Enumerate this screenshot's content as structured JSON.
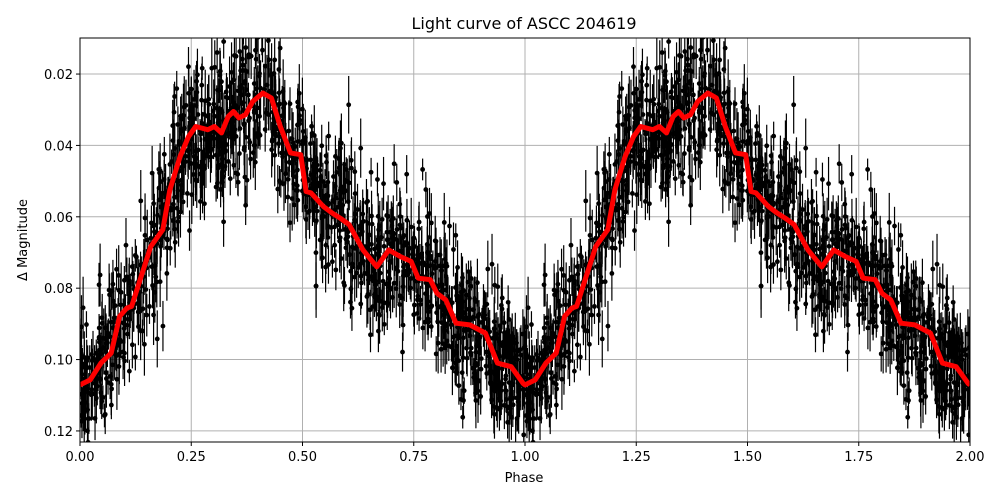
{
  "chart_data": {
    "type": "scatter",
    "title": "Light curve of ASCC 204619",
    "xlabel": "Phase",
    "ylabel": "Δ Magnitude",
    "xlim": [
      0,
      2
    ],
    "ylim": [
      0.1231,
      0.0099
    ],
    "y_inverted": true,
    "grid": true,
    "x_ticks": [
      "0.00",
      "0.25",
      "0.50",
      "0.75",
      "1.00",
      "1.25",
      "1.50",
      "1.75",
      "2.00"
    ],
    "x_tick_values": [
      0,
      0.25,
      0.5,
      0.75,
      1.0,
      1.25,
      1.5,
      1.75,
      2.0
    ],
    "y_ticks": [
      "0.02",
      "0.04",
      "0.06",
      "0.08",
      "0.10",
      "0.12"
    ],
    "y_tick_values": [
      0.02,
      0.04,
      0.06,
      0.08,
      0.1,
      0.12
    ],
    "colors": {
      "observations": "#000000",
      "smoothed": "#ff0000",
      "grid": "#b0b0b0"
    },
    "series": [
      {
        "kind": "errorbar-scatter",
        "color": "#000000",
        "note_period": "points repeat for phase 1–2",
        "scatter_sd": 0.01
      },
      {
        "kind": "line",
        "color": "#ff0000",
        "phase": [
          0,
          0.023,
          0.047,
          0.07,
          0.089,
          0.105,
          0.116,
          0.147,
          0.159,
          0.186,
          0.202,
          0.225,
          0.244,
          0.26,
          0.287,
          0.302,
          0.318,
          0.333,
          0.345,
          0.357,
          0.372,
          0.388,
          0.411,
          0.43,
          0.45,
          0.473,
          0.496,
          0.508,
          0.519,
          0.547,
          0.566,
          0.585,
          0.605,
          0.636,
          0.667,
          0.694,
          0.721,
          0.744,
          0.76,
          0.787,
          0.802,
          0.822,
          0.845,
          0.876,
          0.911,
          0.938,
          0.969,
          0.996
        ],
        "magnitude": [
          0.1071,
          0.1057,
          0.101,
          0.0982,
          0.0879,
          0.0856,
          0.0851,
          0.073,
          0.0683,
          0.0636,
          0.0524,
          0.0431,
          0.0375,
          0.0347,
          0.0356,
          0.0347,
          0.0365,
          0.0319,
          0.0305,
          0.0323,
          0.0314,
          0.0277,
          0.0253,
          0.0267,
          0.0347,
          0.0421,
          0.0426,
          0.0529,
          0.0533,
          0.0571,
          0.0589,
          0.0604,
          0.0622,
          0.0693,
          0.074,
          0.0693,
          0.0712,
          0.0725,
          0.0772,
          0.0776,
          0.0814,
          0.0833,
          0.0898,
          0.0903,
          0.0926,
          0.101,
          0.102,
          0.1067
        ]
      }
    ]
  }
}
